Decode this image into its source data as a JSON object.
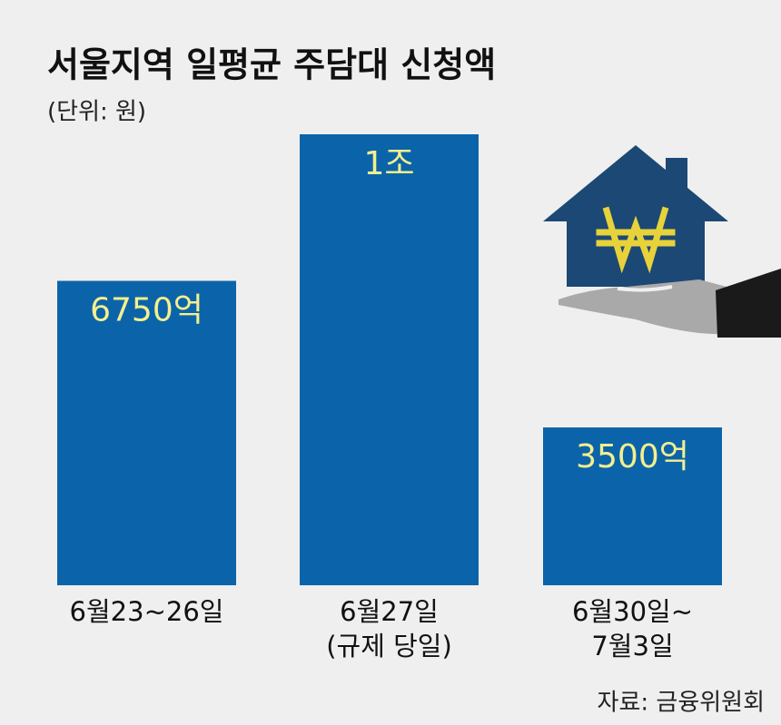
{
  "chart_data": {
    "type": "bar",
    "title": "서울지역 일평균 주담대 신청액",
    "subtitle": "(단위: 원)",
    "categories": [
      [
        "6월23~26일"
      ],
      [
        "6월27일",
        "(규제 당일)"
      ],
      [
        "6월30일~",
        "7월3일"
      ]
    ],
    "values": [
      6750,
      10000,
      3500
    ],
    "value_labels": [
      "6750억",
      "1조",
      "3500억"
    ],
    "color": "#0b64a9",
    "source": "자료: 금융위원회"
  }
}
